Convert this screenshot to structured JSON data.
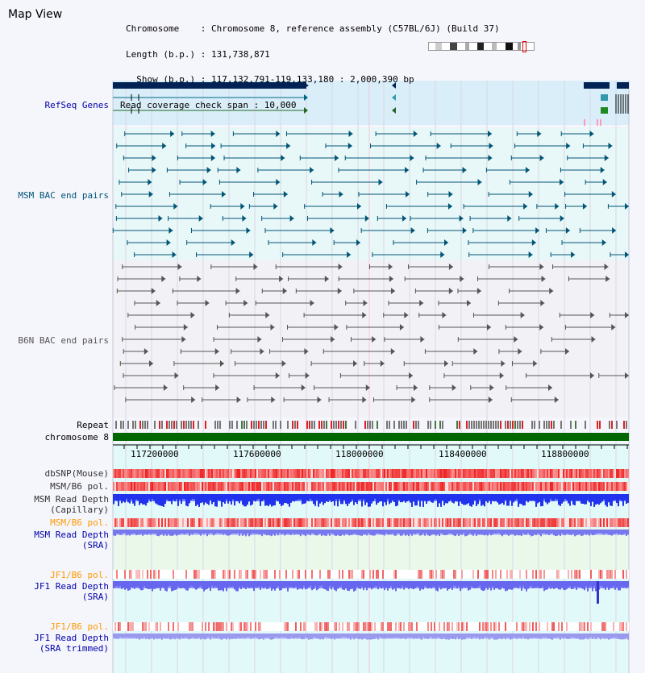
{
  "page": {
    "title": "Map View"
  },
  "info": {
    "rows": [
      "Chromosome    : Chromosome 8, reference assembly (C57BL/6J) (Build 37)",
      "Length (b.p.) : 131,738,871",
      "  Show (b.p.) : 117,132,791-119,133,180 : 2,000,390 bp",
      "Read coverage check span : 10,000"
    ]
  },
  "colors": {
    "refseq": "#000099",
    "msm_bac": "#005577",
    "b6n_bac": "#555555",
    "chromosome": "#006600",
    "dbsnp": "#ee2222",
    "read_depth": "#2222ee",
    "pol_label": "#ff9900"
  },
  "tracks": {
    "refseq_genes": "RefSeq Genes",
    "msm_bac": "MSM BAC end pairs",
    "b6n_bac": "B6N BAC end pairs",
    "repeat": "Repeat",
    "chromosome": "chromosome 8",
    "dbsnp": "dbSNP(Mouse)",
    "msm_b6_pol_a": "MSM/B6 pol.",
    "msm_read_depth_cap": {
      "line1": "MSM Read Depth",
      "line2": "(Capillary)"
    },
    "msm_b6_pol_b": "MSM/B6 pol.",
    "msm_read_depth_sra": {
      "line1": "MSM Read Depth",
      "line2": "(SRA)"
    },
    "jf1_b6_pol_a": "JF1/B6 pol.",
    "jf1_read_depth_sra": {
      "line1": "JF1 Read Depth",
      "line2": "(SRA)"
    },
    "jf1_b6_pol_b": "JF1/B6 pol.",
    "jf1_read_depth_trim": {
      "line1": "JF1 Read Depth",
      "line2": "(SRA trimmed)"
    }
  },
  "axis": {
    "ticks": [
      "117200000",
      "117600000",
      "118000000",
      "118400000",
      "118800000"
    ]
  }
}
